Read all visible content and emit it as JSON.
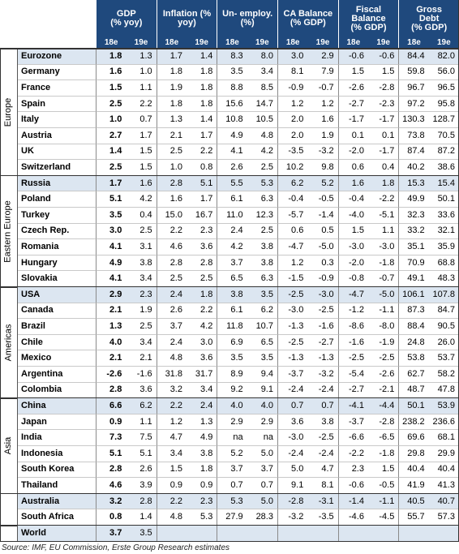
{
  "header": {
    "columns": [
      {
        "title": [
          "GDP",
          "(% yoy)"
        ],
        "sub": [
          "18e",
          "19e"
        ]
      },
      {
        "title": [
          "Inflation (%",
          "yoy)"
        ],
        "sub": [
          "18e",
          "19e"
        ]
      },
      {
        "title": [
          "Un- employ.",
          "(%)"
        ],
        "sub": [
          "18e",
          "19e"
        ]
      },
      {
        "title": [
          "CA Balance",
          "(% GDP)"
        ],
        "sub": [
          "18e",
          "19e"
        ]
      },
      {
        "title": [
          "Fiscal",
          "Balance",
          "(% GDP)"
        ],
        "sub": [
          "18e",
          "19e"
        ]
      },
      {
        "title": [
          "Gross",
          "Debt",
          "(% GDP)"
        ],
        "sub": [
          "18e",
          "19e"
        ]
      }
    ]
  },
  "groups": [
    {
      "region": "Europe",
      "rows": [
        [
          "Eurozone",
          "1.8",
          "1.3",
          "1.7",
          "1.4",
          "8.3",
          "8.0",
          "3.0",
          "2.9",
          "-0.6",
          "-0.6",
          "84.4",
          "82.0"
        ],
        [
          "Germany",
          "1.6",
          "1.0",
          "1.8",
          "1.8",
          "3.5",
          "3.4",
          "8.1",
          "7.9",
          "1.5",
          "1.5",
          "59.8",
          "56.0"
        ],
        [
          "France",
          "1.5",
          "1.1",
          "1.9",
          "1.8",
          "8.8",
          "8.5",
          "-0.9",
          "-0.7",
          "-2.6",
          "-2.8",
          "96.7",
          "96.5"
        ],
        [
          "Spain",
          "2.5",
          "2.2",
          "1.8",
          "1.8",
          "15.6",
          "14.7",
          "1.2",
          "1.2",
          "-2.7",
          "-2.3",
          "97.2",
          "95.8"
        ],
        [
          "Italy",
          "1.0",
          "0.7",
          "1.3",
          "1.4",
          "10.8",
          "10.5",
          "2.0",
          "1.6",
          "-1.7",
          "-1.7",
          "130.3",
          "128.7"
        ],
        [
          "Austria",
          "2.7",
          "1.7",
          "2.1",
          "1.7",
          "4.9",
          "4.8",
          "2.0",
          "1.9",
          "0.1",
          "0.1",
          "73.8",
          "70.5"
        ],
        [
          "UK",
          "1.4",
          "1.5",
          "2.5",
          "2.2",
          "4.1",
          "4.2",
          "-3.5",
          "-3.2",
          "-2.0",
          "-1.7",
          "87.4",
          "87.2"
        ],
        [
          "Switzerland",
          "2.5",
          "1.5",
          "1.0",
          "0.8",
          "2.6",
          "2.5",
          "10.2",
          "9.8",
          "0.6",
          "0.4",
          "40.2",
          "38.6"
        ]
      ]
    },
    {
      "region": "Eastern Europe",
      "rows": [
        [
          "Russia",
          "1.7",
          "1.6",
          "2.8",
          "5.1",
          "5.5",
          "5.3",
          "6.2",
          "5.2",
          "1.6",
          "1.8",
          "15.3",
          "15.4"
        ],
        [
          "Poland",
          "5.1",
          "4.2",
          "1.6",
          "1.7",
          "6.1",
          "6.3",
          "-0.4",
          "-0.5",
          "-0.4",
          "-2.2",
          "49.9",
          "50.1"
        ],
        [
          "Turkey",
          "3.5",
          "0.4",
          "15.0",
          "16.7",
          "11.0",
          "12.3",
          "-5.7",
          "-1.4",
          "-4.0",
          "-5.1",
          "32.3",
          "33.6"
        ],
        [
          "Czech Rep.",
          "3.0",
          "2.5",
          "2.2",
          "2.3",
          "2.4",
          "2.5",
          "0.6",
          "0.5",
          "1.5",
          "1.1",
          "33.2",
          "32.1"
        ],
        [
          "Romania",
          "4.1",
          "3.1",
          "4.6",
          "3.6",
          "4.2",
          "3.8",
          "-4.7",
          "-5.0",
          "-3.0",
          "-3.0",
          "35.1",
          "35.9"
        ],
        [
          "Hungary",
          "4.9",
          "3.8",
          "2.8",
          "2.8",
          "3.7",
          "3.8",
          "1.2",
          "0.3",
          "-2.0",
          "-1.8",
          "70.9",
          "68.8"
        ],
        [
          "Slovakia",
          "4.1",
          "3.4",
          "2.5",
          "2.5",
          "6.5",
          "6.3",
          "-1.5",
          "-0.9",
          "-0.8",
          "-0.7",
          "49.1",
          "48.3"
        ]
      ]
    },
    {
      "region": "Americas",
      "rows": [
        [
          "USA",
          "2.9",
          "2.3",
          "2.4",
          "1.8",
          "3.8",
          "3.5",
          "-2.5",
          "-3.0",
          "-4.7",
          "-5.0",
          "106.1",
          "107.8"
        ],
        [
          "Canada",
          "2.1",
          "1.9",
          "2.6",
          "2.2",
          "6.1",
          "6.2",
          "-3.0",
          "-2.5",
          "-1.2",
          "-1.1",
          "87.3",
          "84.7"
        ],
        [
          "Brazil",
          "1.3",
          "2.5",
          "3.7",
          "4.2",
          "11.8",
          "10.7",
          "-1.3",
          "-1.6",
          "-8.6",
          "-8.0",
          "88.4",
          "90.5"
        ],
        [
          "Chile",
          "4.0",
          "3.4",
          "2.4",
          "3.0",
          "6.9",
          "6.5",
          "-2.5",
          "-2.7",
          "-1.6",
          "-1.9",
          "24.8",
          "26.0"
        ],
        [
          "Mexico",
          "2.1",
          "2.1",
          "4.8",
          "3.6",
          "3.5",
          "3.5",
          "-1.3",
          "-1.3",
          "-2.5",
          "-2.5",
          "53.8",
          "53.7"
        ],
        [
          "Argentina",
          "-2.6",
          "-1.6",
          "31.8",
          "31.7",
          "8.9",
          "9.4",
          "-3.7",
          "-3.2",
          "-5.4",
          "-2.6",
          "62.7",
          "58.2"
        ],
        [
          "Colombia",
          "2.8",
          "3.6",
          "3.2",
          "3.4",
          "9.2",
          "9.1",
          "-2.4",
          "-2.4",
          "-2.7",
          "-2.1",
          "48.7",
          "47.8"
        ]
      ]
    },
    {
      "region": "Asia",
      "rows": [
        [
          "China",
          "6.6",
          "6.2",
          "2.2",
          "2.4",
          "4.0",
          "4.0",
          "0.7",
          "0.7",
          "-4.1",
          "-4.4",
          "50.1",
          "53.9"
        ],
        [
          "Japan",
          "0.9",
          "1.1",
          "1.2",
          "1.3",
          "2.9",
          "2.9",
          "3.6",
          "3.8",
          "-3.7",
          "-2.8",
          "238.2",
          "236.6"
        ],
        [
          "India",
          "7.3",
          "7.5",
          "4.7",
          "4.9",
          "na",
          "na",
          "-3.0",
          "-2.5",
          "-6.6",
          "-6.5",
          "69.6",
          "68.1"
        ],
        [
          "Indonesia",
          "5.1",
          "5.1",
          "3.4",
          "3.8",
          "5.2",
          "5.0",
          "-2.4",
          "-2.4",
          "-2.2",
          "-1.8",
          "29.8",
          "29.9"
        ],
        [
          "South Korea",
          "2.8",
          "2.6",
          "1.5",
          "1.8",
          "3.7",
          "3.7",
          "5.0",
          "4.7",
          "2.3",
          "1.5",
          "40.4",
          "40.4"
        ],
        [
          "Thailand",
          "4.6",
          "3.9",
          "0.9",
          "0.9",
          "0.7",
          "0.7",
          "9.1",
          "8.1",
          "-0.6",
          "-0.5",
          "41.9",
          "41.3"
        ]
      ]
    },
    {
      "rows": [
        [
          "Australia",
          "3.2",
          "2.8",
          "2.2",
          "2.3",
          "5.3",
          "5.0",
          "-2.8",
          "-3.1",
          "-1.4",
          "-1.1",
          "40.5",
          "40.7"
        ],
        [
          "South Africa",
          "0.8",
          "1.4",
          "4.8",
          "5.3",
          "27.9",
          "28.3",
          "-3.2",
          "-3.5",
          "-4.6",
          "-4.5",
          "55.7",
          "57.3"
        ]
      ]
    },
    {
      "rows": [
        [
          "World",
          "3.7",
          "3.5"
        ]
      ]
    }
  ],
  "source": "Source: IMF, EU Commission, Erste Group Research estimates"
}
